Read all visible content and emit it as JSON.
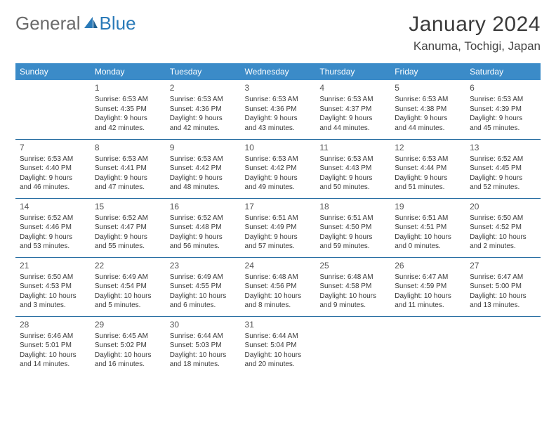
{
  "logo": {
    "general": "General",
    "blue": "Blue"
  },
  "title": {
    "monthYear": "January 2024",
    "location": "Kanuma, Tochigi, Japan"
  },
  "colors": {
    "header_bg": "#3b8bc8",
    "header_text": "#ffffff",
    "row_border": "#2a6fa3",
    "logo_gray": "#6a6a6a",
    "logo_blue": "#2a7ab8",
    "body_text": "#3a3a3a",
    "daynum_text": "#555555",
    "page_bg": "#ffffff"
  },
  "dayHeaders": [
    "Sunday",
    "Monday",
    "Tuesday",
    "Wednesday",
    "Thursday",
    "Friday",
    "Saturday"
  ],
  "weeks": [
    [
      null,
      {
        "n": "1",
        "sr": "Sunrise: 6:53 AM",
        "ss": "Sunset: 4:35 PM",
        "d1": "Daylight: 9 hours",
        "d2": "and 42 minutes."
      },
      {
        "n": "2",
        "sr": "Sunrise: 6:53 AM",
        "ss": "Sunset: 4:36 PM",
        "d1": "Daylight: 9 hours",
        "d2": "and 42 minutes."
      },
      {
        "n": "3",
        "sr": "Sunrise: 6:53 AM",
        "ss": "Sunset: 4:36 PM",
        "d1": "Daylight: 9 hours",
        "d2": "and 43 minutes."
      },
      {
        "n": "4",
        "sr": "Sunrise: 6:53 AM",
        "ss": "Sunset: 4:37 PM",
        "d1": "Daylight: 9 hours",
        "d2": "and 44 minutes."
      },
      {
        "n": "5",
        "sr": "Sunrise: 6:53 AM",
        "ss": "Sunset: 4:38 PM",
        "d1": "Daylight: 9 hours",
        "d2": "and 44 minutes."
      },
      {
        "n": "6",
        "sr": "Sunrise: 6:53 AM",
        "ss": "Sunset: 4:39 PM",
        "d1": "Daylight: 9 hours",
        "d2": "and 45 minutes."
      }
    ],
    [
      {
        "n": "7",
        "sr": "Sunrise: 6:53 AM",
        "ss": "Sunset: 4:40 PM",
        "d1": "Daylight: 9 hours",
        "d2": "and 46 minutes."
      },
      {
        "n": "8",
        "sr": "Sunrise: 6:53 AM",
        "ss": "Sunset: 4:41 PM",
        "d1": "Daylight: 9 hours",
        "d2": "and 47 minutes."
      },
      {
        "n": "9",
        "sr": "Sunrise: 6:53 AM",
        "ss": "Sunset: 4:42 PM",
        "d1": "Daylight: 9 hours",
        "d2": "and 48 minutes."
      },
      {
        "n": "10",
        "sr": "Sunrise: 6:53 AM",
        "ss": "Sunset: 4:42 PM",
        "d1": "Daylight: 9 hours",
        "d2": "and 49 minutes."
      },
      {
        "n": "11",
        "sr": "Sunrise: 6:53 AM",
        "ss": "Sunset: 4:43 PM",
        "d1": "Daylight: 9 hours",
        "d2": "and 50 minutes."
      },
      {
        "n": "12",
        "sr": "Sunrise: 6:53 AM",
        "ss": "Sunset: 4:44 PM",
        "d1": "Daylight: 9 hours",
        "d2": "and 51 minutes."
      },
      {
        "n": "13",
        "sr": "Sunrise: 6:52 AM",
        "ss": "Sunset: 4:45 PM",
        "d1": "Daylight: 9 hours",
        "d2": "and 52 minutes."
      }
    ],
    [
      {
        "n": "14",
        "sr": "Sunrise: 6:52 AM",
        "ss": "Sunset: 4:46 PM",
        "d1": "Daylight: 9 hours",
        "d2": "and 53 minutes."
      },
      {
        "n": "15",
        "sr": "Sunrise: 6:52 AM",
        "ss": "Sunset: 4:47 PM",
        "d1": "Daylight: 9 hours",
        "d2": "and 55 minutes."
      },
      {
        "n": "16",
        "sr": "Sunrise: 6:52 AM",
        "ss": "Sunset: 4:48 PM",
        "d1": "Daylight: 9 hours",
        "d2": "and 56 minutes."
      },
      {
        "n": "17",
        "sr": "Sunrise: 6:51 AM",
        "ss": "Sunset: 4:49 PM",
        "d1": "Daylight: 9 hours",
        "d2": "and 57 minutes."
      },
      {
        "n": "18",
        "sr": "Sunrise: 6:51 AM",
        "ss": "Sunset: 4:50 PM",
        "d1": "Daylight: 9 hours",
        "d2": "and 59 minutes."
      },
      {
        "n": "19",
        "sr": "Sunrise: 6:51 AM",
        "ss": "Sunset: 4:51 PM",
        "d1": "Daylight: 10 hours",
        "d2": "and 0 minutes."
      },
      {
        "n": "20",
        "sr": "Sunrise: 6:50 AM",
        "ss": "Sunset: 4:52 PM",
        "d1": "Daylight: 10 hours",
        "d2": "and 2 minutes."
      }
    ],
    [
      {
        "n": "21",
        "sr": "Sunrise: 6:50 AM",
        "ss": "Sunset: 4:53 PM",
        "d1": "Daylight: 10 hours",
        "d2": "and 3 minutes."
      },
      {
        "n": "22",
        "sr": "Sunrise: 6:49 AM",
        "ss": "Sunset: 4:54 PM",
        "d1": "Daylight: 10 hours",
        "d2": "and 5 minutes."
      },
      {
        "n": "23",
        "sr": "Sunrise: 6:49 AM",
        "ss": "Sunset: 4:55 PM",
        "d1": "Daylight: 10 hours",
        "d2": "and 6 minutes."
      },
      {
        "n": "24",
        "sr": "Sunrise: 6:48 AM",
        "ss": "Sunset: 4:56 PM",
        "d1": "Daylight: 10 hours",
        "d2": "and 8 minutes."
      },
      {
        "n": "25",
        "sr": "Sunrise: 6:48 AM",
        "ss": "Sunset: 4:58 PM",
        "d1": "Daylight: 10 hours",
        "d2": "and 9 minutes."
      },
      {
        "n": "26",
        "sr": "Sunrise: 6:47 AM",
        "ss": "Sunset: 4:59 PM",
        "d1": "Daylight: 10 hours",
        "d2": "and 11 minutes."
      },
      {
        "n": "27",
        "sr": "Sunrise: 6:47 AM",
        "ss": "Sunset: 5:00 PM",
        "d1": "Daylight: 10 hours",
        "d2": "and 13 minutes."
      }
    ],
    [
      {
        "n": "28",
        "sr": "Sunrise: 6:46 AM",
        "ss": "Sunset: 5:01 PM",
        "d1": "Daylight: 10 hours",
        "d2": "and 14 minutes."
      },
      {
        "n": "29",
        "sr": "Sunrise: 6:45 AM",
        "ss": "Sunset: 5:02 PM",
        "d1": "Daylight: 10 hours",
        "d2": "and 16 minutes."
      },
      {
        "n": "30",
        "sr": "Sunrise: 6:44 AM",
        "ss": "Sunset: 5:03 PM",
        "d1": "Daylight: 10 hours",
        "d2": "and 18 minutes."
      },
      {
        "n": "31",
        "sr": "Sunrise: 6:44 AM",
        "ss": "Sunset: 5:04 PM",
        "d1": "Daylight: 10 hours",
        "d2": "and 20 minutes."
      },
      null,
      null,
      null
    ]
  ]
}
